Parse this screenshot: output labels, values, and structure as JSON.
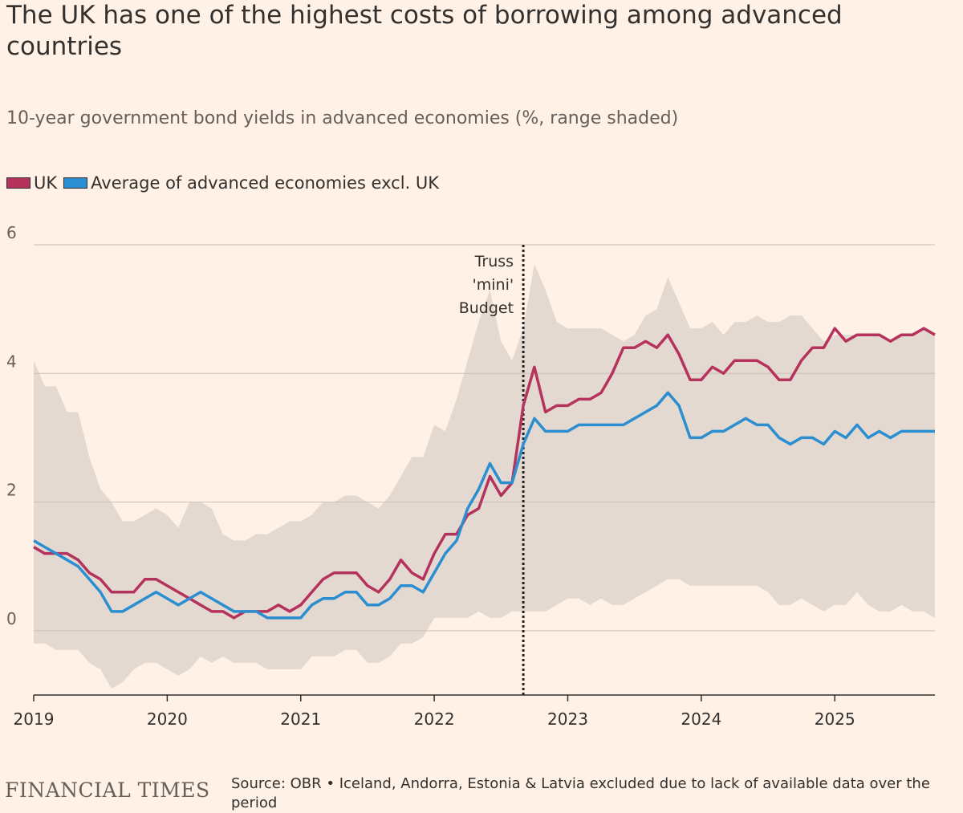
{
  "title": "The UK has one of the highest costs of borrowing among advanced countries",
  "subtitle": "10-year government bond yields in advanced economies (%, range shaded)",
  "source": "Source: OBR • Iceland, Andorra, Estonia & Latvia excluded due to lack of available data over the period",
  "logo": "FINANCIAL TIMES",
  "colors": {
    "background": "#fff1e5",
    "uk": "#b5325c",
    "average": "#2b8ed0",
    "range": "#e3d9d1",
    "grid": "#c9bfb8",
    "annotation_line": "#222222"
  },
  "chart_data": {
    "type": "line",
    "title": "The UK has one of the highest costs of borrowing among advanced countries",
    "subtitle": "10-year government bond yields in advanced economies (%, range shaded)",
    "xlabel": "",
    "ylabel": "",
    "xlim": [
      2019.0,
      2025.75
    ],
    "ylim": [
      -1,
      6
    ],
    "yticks": [
      0,
      2,
      4,
      6
    ],
    "xticks": [
      2019,
      2020,
      2021,
      2022,
      2023,
      2024,
      2025
    ],
    "grid": true,
    "legend_position": "top-left",
    "x": [
      2019.0,
      2019.083,
      2019.167,
      2019.25,
      2019.333,
      2019.417,
      2019.5,
      2019.583,
      2019.667,
      2019.75,
      2019.833,
      2019.917,
      2020.0,
      2020.083,
      2020.167,
      2020.25,
      2020.333,
      2020.417,
      2020.5,
      2020.583,
      2020.667,
      2020.75,
      2020.833,
      2020.917,
      2021.0,
      2021.083,
      2021.167,
      2021.25,
      2021.333,
      2021.417,
      2021.5,
      2021.583,
      2021.667,
      2021.75,
      2021.833,
      2021.917,
      2022.0,
      2022.083,
      2022.167,
      2022.25,
      2022.333,
      2022.417,
      2022.5,
      2022.583,
      2022.667,
      2022.75,
      2022.833,
      2022.917,
      2023.0,
      2023.083,
      2023.167,
      2023.25,
      2023.333,
      2023.417,
      2023.5,
      2023.583,
      2023.667,
      2023.75,
      2023.833,
      2023.917,
      2024.0,
      2024.083,
      2024.167,
      2024.25,
      2024.333,
      2024.417,
      2024.5,
      2024.583,
      2024.667,
      2024.75,
      2024.833,
      2024.917,
      2025.0,
      2025.083,
      2025.167,
      2025.25,
      2025.333,
      2025.417,
      2025.5,
      2025.583,
      2025.667,
      2025.75
    ],
    "series": [
      {
        "name": "UK",
        "color": "#b5325c",
        "values": [
          1.3,
          1.2,
          1.2,
          1.2,
          1.1,
          0.9,
          0.8,
          0.6,
          0.6,
          0.6,
          0.8,
          0.8,
          0.7,
          0.6,
          0.5,
          0.4,
          0.3,
          0.3,
          0.2,
          0.3,
          0.3,
          0.3,
          0.4,
          0.3,
          0.4,
          0.6,
          0.8,
          0.9,
          0.9,
          0.9,
          0.7,
          0.6,
          0.8,
          1.1,
          0.9,
          0.8,
          1.2,
          1.5,
          1.5,
          1.8,
          1.9,
          2.4,
          2.1,
          2.3,
          3.5,
          4.1,
          3.4,
          3.5,
          3.5,
          3.6,
          3.6,
          3.7,
          4.0,
          4.4,
          4.4,
          4.5,
          4.4,
          4.6,
          4.3,
          3.9,
          3.9,
          4.1,
          4.0,
          4.2,
          4.2,
          4.2,
          4.1,
          3.9,
          3.9,
          4.2,
          4.4,
          4.4,
          4.7,
          4.5,
          4.6,
          4.6,
          4.6,
          4.5,
          4.6,
          4.6,
          4.7,
          4.6
        ]
      },
      {
        "name": "Average of advanced economies excl. UK",
        "color": "#2b8ed0",
        "values": [
          1.4,
          1.3,
          1.2,
          1.1,
          1.0,
          0.8,
          0.6,
          0.3,
          0.3,
          0.4,
          0.5,
          0.6,
          0.5,
          0.4,
          0.5,
          0.6,
          0.5,
          0.4,
          0.3,
          0.3,
          0.3,
          0.2,
          0.2,
          0.2,
          0.2,
          0.4,
          0.5,
          0.5,
          0.6,
          0.6,
          0.4,
          0.4,
          0.5,
          0.7,
          0.7,
          0.6,
          0.9,
          1.2,
          1.4,
          1.9,
          2.2,
          2.6,
          2.3,
          2.3,
          2.9,
          3.3,
          3.1,
          3.1,
          3.1,
          3.2,
          3.2,
          3.2,
          3.2,
          3.2,
          3.3,
          3.4,
          3.5,
          3.7,
          3.5,
          3.0,
          3.0,
          3.1,
          3.1,
          3.2,
          3.3,
          3.2,
          3.2,
          3.0,
          2.9,
          3.0,
          3.0,
          2.9,
          3.1,
          3.0,
          3.2,
          3.0,
          3.1,
          3.0,
          3.1,
          3.1,
          3.1,
          3.1
        ]
      }
    ],
    "range": {
      "low": [
        -0.2,
        -0.2,
        -0.3,
        -0.3,
        -0.3,
        -0.5,
        -0.6,
        -0.9,
        -0.8,
        -0.6,
        -0.5,
        -0.5,
        -0.6,
        -0.7,
        -0.6,
        -0.4,
        -0.5,
        -0.4,
        -0.5,
        -0.5,
        -0.5,
        -0.6,
        -0.6,
        -0.6,
        -0.6,
        -0.4,
        -0.4,
        -0.4,
        -0.3,
        -0.3,
        -0.5,
        -0.5,
        -0.4,
        -0.2,
        -0.2,
        -0.1,
        0.2,
        0.2,
        0.2,
        0.2,
        0.3,
        0.2,
        0.2,
        0.3,
        0.3,
        0.3,
        0.3,
        0.4,
        0.5,
        0.5,
        0.4,
        0.5,
        0.4,
        0.4,
        0.5,
        0.6,
        0.7,
        0.8,
        0.8,
        0.7,
        0.7,
        0.7,
        0.7,
        0.7,
        0.7,
        0.7,
        0.6,
        0.4,
        0.4,
        0.5,
        0.4,
        0.3,
        0.4,
        0.4,
        0.6,
        0.4,
        0.3,
        0.3,
        0.4,
        0.3,
        0.3,
        0.2
      ],
      "high": [
        4.2,
        3.8,
        3.8,
        3.4,
        3.4,
        2.7,
        2.2,
        2.0,
        1.7,
        1.7,
        1.8,
        1.9,
        1.8,
        1.6,
        2.0,
        2.0,
        1.9,
        1.5,
        1.4,
        1.4,
        1.5,
        1.5,
        1.6,
        1.7,
        1.7,
        1.8,
        2.0,
        2.0,
        2.1,
        2.1,
        2.0,
        1.9,
        2.1,
        2.4,
        2.7,
        2.7,
        3.2,
        3.1,
        3.6,
        4.2,
        4.8,
        5.3,
        4.5,
        4.2,
        4.7,
        5.7,
        5.3,
        4.8,
        4.7,
        4.7,
        4.7,
        4.7,
        4.6,
        4.5,
        4.6,
        4.9,
        5.0,
        5.5,
        5.1,
        4.7,
        4.7,
        4.8,
        4.6,
        4.8,
        4.8,
        4.9,
        4.8,
        4.8,
        4.9,
        4.9,
        4.7,
        4.5,
        4.6,
        4.6,
        4.6,
        4.6,
        4.6,
        4.5,
        4.6,
        4.6,
        4.7,
        4.6
      ]
    },
    "annotations": [
      {
        "x": 2022.667,
        "label_lines": [
          "Truss",
          "'mini'",
          "Budget"
        ]
      }
    ]
  }
}
